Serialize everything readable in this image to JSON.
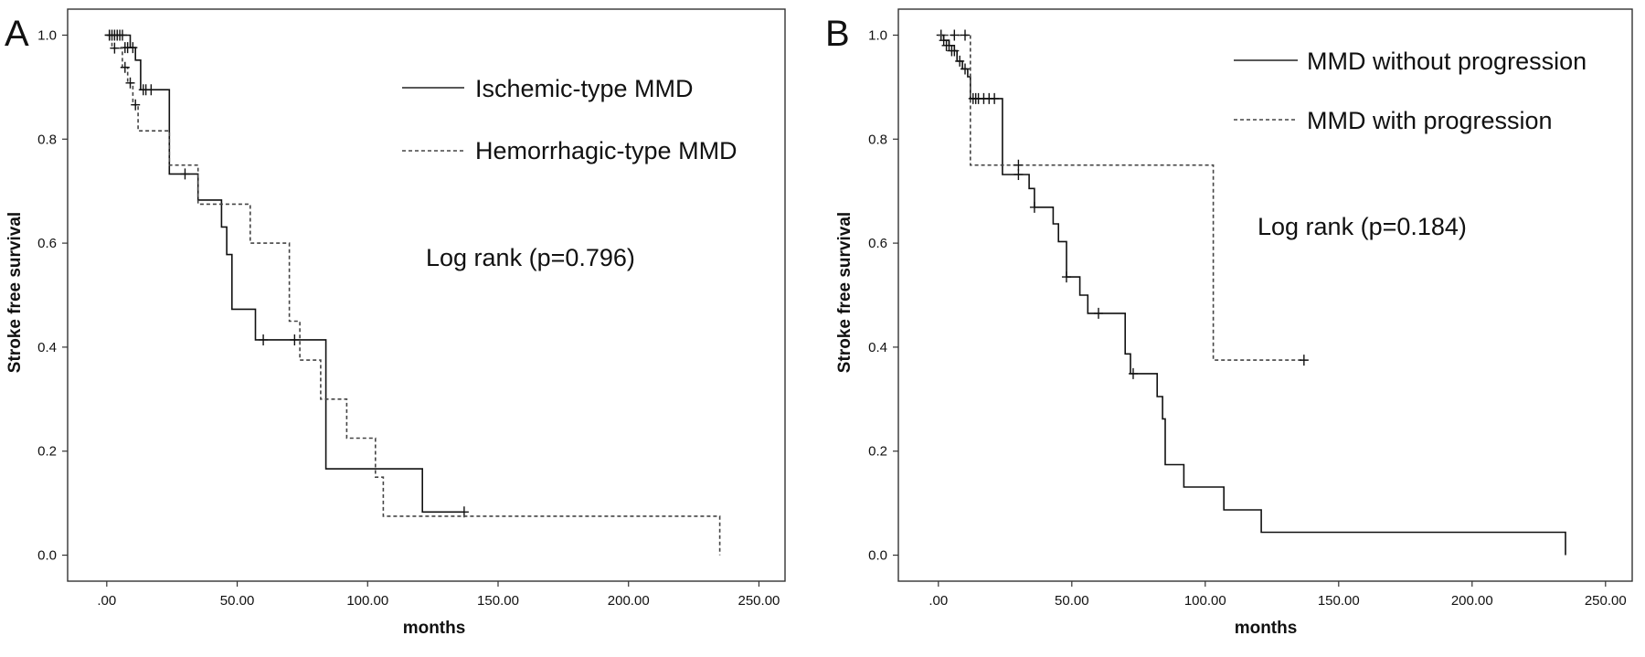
{
  "chart_data": [
    {
      "type": "line",
      "panel_label": "A",
      "xlabel": "months",
      "ylabel": "Stroke free survival",
      "xlim": [
        -15,
        260
      ],
      "ylim": [
        -0.05,
        1.05
      ],
      "x_ticks": [
        0,
        50,
        100,
        150,
        200,
        250
      ],
      "x_tick_labels": [
        ".00",
        "50.00",
        "100.00",
        "150.00",
        "200.00",
        "250.00"
      ],
      "y_ticks": [
        0,
        0.2,
        0.4,
        0.6,
        0.8,
        1.0
      ],
      "y_tick_labels": [
        "0.0",
        "0.2",
        "0.4",
        "0.6",
        "0.8",
        "1.0"
      ],
      "grid": false,
      "legend_position": "top-right",
      "annotation": "Log rank (p=0.796)",
      "series": [
        {
          "name": "Ischemic-type MMD",
          "style": "solid",
          "steps": [
            [
              0,
              1.0
            ],
            [
              9,
              0.976
            ],
            [
              11,
              0.952
            ],
            [
              13,
              0.895
            ],
            [
              24,
              0.895
            ],
            [
              24,
              0.733
            ],
            [
              33,
              0.733
            ],
            [
              35,
              0.683
            ],
            [
              43,
              0.683
            ],
            [
              44,
              0.631
            ],
            [
              46,
              0.578
            ],
            [
              48,
              0.473
            ],
            [
              55,
              0.473
            ],
            [
              57,
              0.414
            ],
            [
              83,
              0.414
            ],
            [
              84,
              0.166
            ],
            [
              120,
              0.166
            ],
            [
              121,
              0.083
            ],
            [
              137,
              0.083
            ]
          ],
          "censored": [
            [
              1,
              1.0
            ],
            [
              2,
              1.0
            ],
            [
              3,
              1.0
            ],
            [
              4,
              1.0
            ],
            [
              5,
              1.0
            ],
            [
              6,
              1.0
            ],
            [
              7,
              0.976
            ],
            [
              8,
              0.976
            ],
            [
              10,
              0.976
            ],
            [
              14,
              0.895
            ],
            [
              15,
              0.895
            ],
            [
              17,
              0.895
            ],
            [
              30,
              0.733
            ],
            [
              60,
              0.414
            ],
            [
              72,
              0.414
            ],
            [
              137,
              0.083
            ]
          ]
        },
        {
          "name": "Hemorrhagic-type MMD",
          "style": "dashed",
          "steps": [
            [
              0,
              1.0
            ],
            [
              2,
              0.975
            ],
            [
              6,
              0.938
            ],
            [
              8,
              0.908
            ],
            [
              10,
              0.866
            ],
            [
              12,
              0.816
            ],
            [
              23,
              0.816
            ],
            [
              24,
              0.75
            ],
            [
              34,
              0.75
            ],
            [
              35,
              0.675
            ],
            [
              54,
              0.675
            ],
            [
              55,
              0.6
            ],
            [
              69,
              0.6
            ],
            [
              70,
              0.45
            ],
            [
              73,
              0.45
            ],
            [
              74,
              0.375
            ],
            [
              81,
              0.375
            ],
            [
              82,
              0.3
            ],
            [
              91,
              0.3
            ],
            [
              92,
              0.225
            ],
            [
              102,
              0.225
            ],
            [
              103,
              0.15
            ],
            [
              105,
              0.15
            ],
            [
              106,
              0.075
            ],
            [
              235,
              0.075
            ],
            [
              235,
              0.0
            ]
          ],
          "censored": [
            [
              1,
              1.0
            ],
            [
              3,
              0.975
            ],
            [
              7,
              0.938
            ],
            [
              9,
              0.908
            ],
            [
              11,
              0.866
            ]
          ]
        }
      ]
    },
    {
      "type": "line",
      "panel_label": "B",
      "xlabel": "months",
      "ylabel": "Stroke free survival",
      "xlim": [
        -15,
        260
      ],
      "ylim": [
        -0.05,
        1.05
      ],
      "x_ticks": [
        0,
        50,
        100,
        150,
        200,
        250
      ],
      "x_tick_labels": [
        ".00",
        "50.00",
        "100.00",
        "150.00",
        "200.00",
        "250.00"
      ],
      "y_ticks": [
        0,
        0.2,
        0.4,
        0.6,
        0.8,
        1.0
      ],
      "y_tick_labels": [
        "0.0",
        "0.2",
        "0.4",
        "0.6",
        "0.8",
        "1.0"
      ],
      "grid": false,
      "legend_position": "top-right",
      "annotation": "Log rank (p=0.184)",
      "series": [
        {
          "name": "MMD without progression",
          "style": "solid",
          "steps": [
            [
              0,
              1.0
            ],
            [
              2,
              0.99
            ],
            [
              4,
              0.98
            ],
            [
              6,
              0.97
            ],
            [
              7,
              0.95
            ],
            [
              9,
              0.935
            ],
            [
              11,
              0.92
            ],
            [
              12,
              0.878
            ],
            [
              24,
              0.878
            ],
            [
              24,
              0.732
            ],
            [
              33,
              0.732
            ],
            [
              34,
              0.705
            ],
            [
              36,
              0.669
            ],
            [
              42,
              0.669
            ],
            [
              43,
              0.637
            ],
            [
              45,
              0.603
            ],
            [
              48,
              0.535
            ],
            [
              52,
              0.535
            ],
            [
              53,
              0.5
            ],
            [
              56,
              0.465
            ],
            [
              69,
              0.465
            ],
            [
              70,
              0.387
            ],
            [
              72,
              0.349
            ],
            [
              81,
              0.349
            ],
            [
              82,
              0.305
            ],
            [
              84,
              0.262
            ],
            [
              85,
              0.174
            ],
            [
              91,
              0.174
            ],
            [
              92,
              0.131
            ],
            [
              106,
              0.131
            ],
            [
              107,
              0.087
            ],
            [
              120,
              0.087
            ],
            [
              121,
              0.044
            ],
            [
              235,
              0.044
            ],
            [
              235,
              0.0
            ]
          ],
          "censored": [
            [
              1,
              1.0
            ],
            [
              2,
              0.99
            ],
            [
              3,
              0.98
            ],
            [
              4,
              0.98
            ],
            [
              5,
              0.97
            ],
            [
              6,
              0.97
            ],
            [
              8,
              0.95
            ],
            [
              10,
              0.935
            ],
            [
              13,
              0.878
            ],
            [
              14,
              0.878
            ],
            [
              15,
              0.878
            ],
            [
              17,
              0.878
            ],
            [
              19,
              0.878
            ],
            [
              21,
              0.878
            ],
            [
              30,
              0.732
            ],
            [
              36,
              0.669
            ],
            [
              48,
              0.535
            ],
            [
              60,
              0.465
            ],
            [
              73,
              0.349
            ]
          ]
        },
        {
          "name": "MMD with progression",
          "style": "dashed",
          "steps": [
            [
              0,
              1.0
            ],
            [
              12,
              1.0
            ],
            [
              12,
              0.75
            ],
            [
              102,
              0.75
            ],
            [
              103,
              0.375
            ],
            [
              137,
              0.375
            ]
          ],
          "censored": [
            [
              6,
              1.0
            ],
            [
              10,
              1.0
            ],
            [
              30,
              0.75
            ],
            [
              137,
              0.375
            ]
          ]
        }
      ]
    }
  ]
}
